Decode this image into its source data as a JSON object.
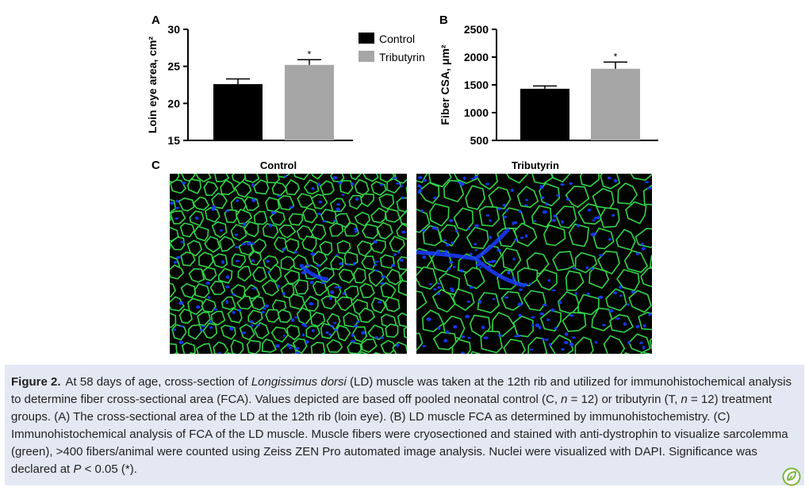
{
  "panel_labels": {
    "a": "A",
    "b": "B",
    "c": "C"
  },
  "chart_data": [
    {
      "type": "bar",
      "panel": "A",
      "categories": [
        "Control",
        "Tributyrin"
      ],
      "values": [
        22.6,
        25.2
      ],
      "errors": [
        0.7,
        0.7
      ],
      "significance": [
        "",
        "*"
      ],
      "ylabel": "Loin eye area, cm²",
      "ylim": [
        15,
        30
      ],
      "yticks": [
        "15",
        "20",
        "25",
        "30"
      ],
      "grid": false
    },
    {
      "type": "bar",
      "panel": "B",
      "categories": [
        "Control",
        "Tributyrin"
      ],
      "values": [
        1430,
        1790
      ],
      "errors": [
        50,
        120
      ],
      "significance": [
        "",
        "*"
      ],
      "ylabel": "Fiber CSA, μm²",
      "ylim": [
        500,
        2500
      ],
      "yticks": [
        "500",
        "1000",
        "1500",
        "2000",
        "2500"
      ],
      "grid": false
    }
  ],
  "legend": {
    "placement": "between panels",
    "items": [
      {
        "label": "Control",
        "color": "#000000"
      },
      {
        "label": "Tributyrin",
        "color": "#a6a6a6"
      }
    ]
  },
  "micrographs": [
    {
      "title": "Control"
    },
    {
      "title": "Tributyrin"
    }
  ],
  "caption": {
    "label": "Figure 2.",
    "parts": [
      {
        "t": "At 58 days of age, cross-section of "
      },
      {
        "t": "Longissimus dorsi",
        "i": true
      },
      {
        "t": " (LD) muscle was taken at the 12th rib and utilized for immunohistochemical analysis to determine fiber cross-sectional area (FCA). Values depicted are based off pooled neonatal control (C, "
      },
      {
        "t": "n",
        "i": true
      },
      {
        "t": " = 12) or tributyrin (T, "
      },
      {
        "t": "n",
        "i": true
      },
      {
        "t": " = 12) treatment groups. (A) The cross-sectional area of the LD at the 12th rib (loin eye). (B) LD muscle FCA as determined by immunohistochemistry. (C) Immunohistochemical analysis of FCA of the LD muscle. Muscle fibers were cryosectioned and stained with anti-dystrophin to visualize sarcolemma (green), >400 fibers/animal were counted using Zeiss ZEN Pro automated image analysis. Nuclei were visualized with DAPI. Significance was declared at "
      },
      {
        "t": "P",
        "i": true
      },
      {
        "t": " < 0.05 (*)."
      }
    ]
  },
  "colors": {
    "control": "#000000",
    "tributyrin": "#a6a6a6",
    "caption_bg": "#e3e8f3",
    "membrane": "#33d44a",
    "nuclei": "#1a3cff"
  },
  "icons": {
    "logo": "open-access-leaf-icon"
  }
}
